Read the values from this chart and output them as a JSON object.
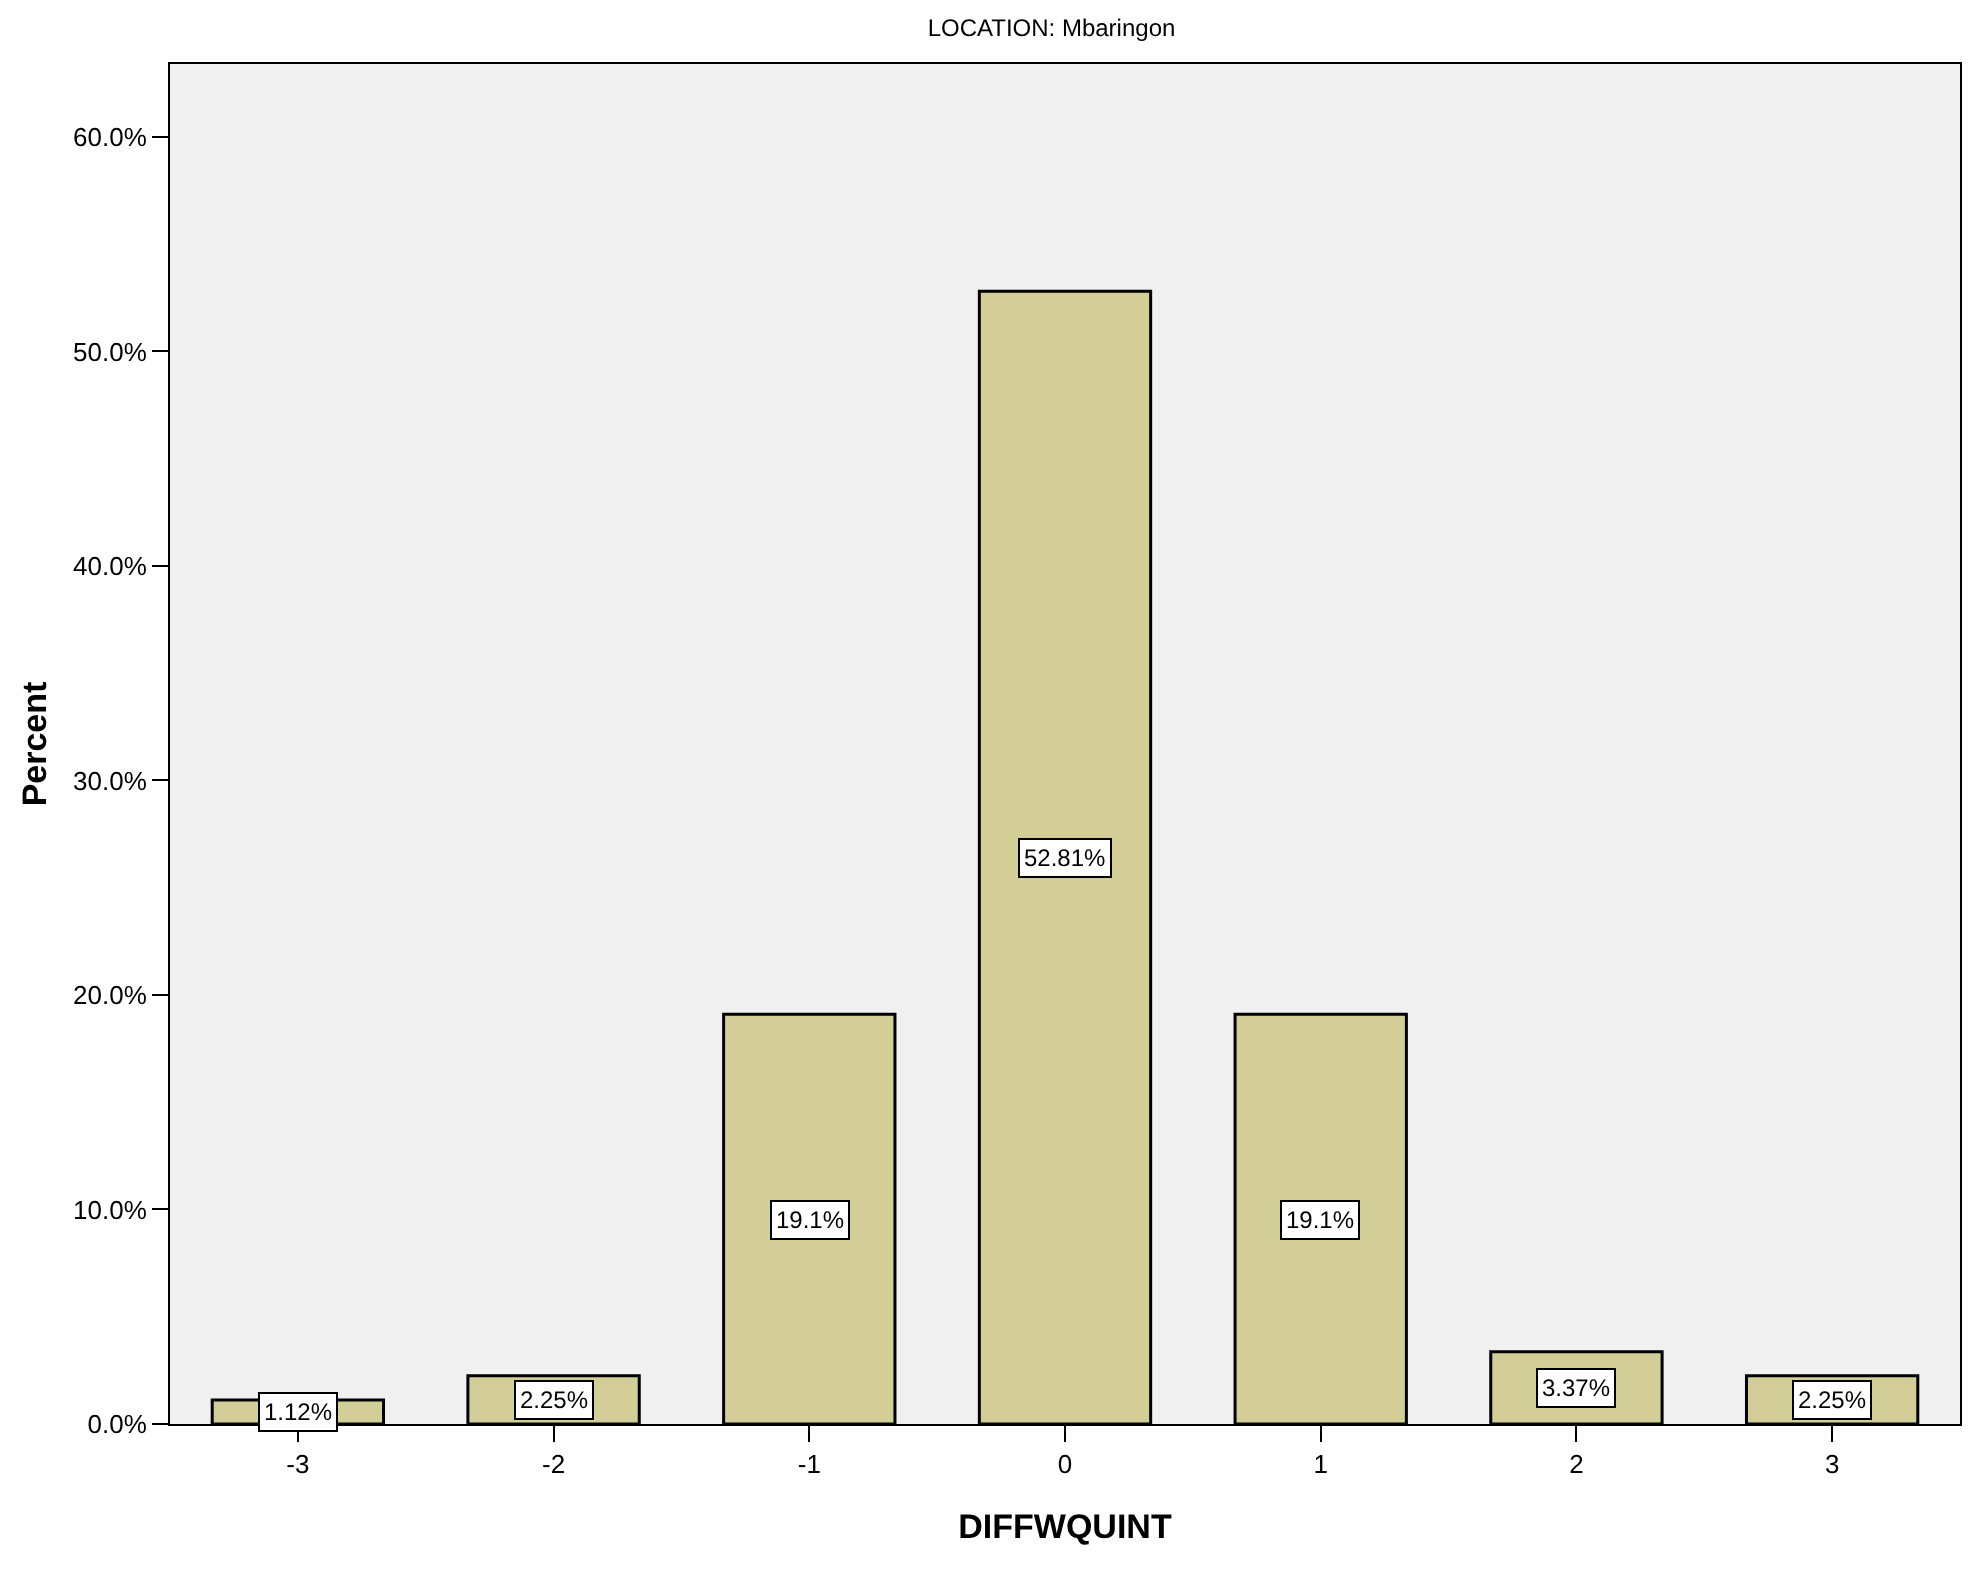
{
  "chart_data": {
    "type": "bar",
    "title": "LOCATION: Mbaringon",
    "xlabel": "DIFFWQUINT",
    "ylabel": "Percent",
    "categories": [
      "-3",
      "-2",
      "-1",
      "0",
      "1",
      "2",
      "3"
    ],
    "values": [
      1.12,
      2.25,
      19.1,
      52.81,
      19.1,
      3.37,
      2.25
    ],
    "value_labels": [
      "1.12%",
      "2.25%",
      "19.1%",
      "52.81%",
      "19.1%",
      "3.37%",
      "2.25%"
    ],
    "color": "#d3ce97",
    "ylim": [
      0,
      63.4
    ],
    "yticks": [
      {
        "value": 0,
        "label": "0.0%"
      },
      {
        "value": 10,
        "label": "10.0%"
      },
      {
        "value": 20,
        "label": "20.0%"
      },
      {
        "value": 30,
        "label": "30.0%"
      },
      {
        "value": 40,
        "label": "40.0%"
      },
      {
        "value": 50,
        "label": "50.0%"
      },
      {
        "value": 60,
        "label": "60.0%"
      }
    ],
    "grid": false
  }
}
